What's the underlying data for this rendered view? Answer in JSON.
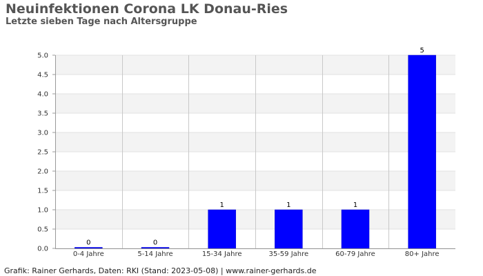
{
  "title": "Neuinfektionen Corona LK Donau-Ries",
  "subtitle": "Letzte sieben Tage nach Altersgruppe",
  "footer": "Grafik: Rainer Gerhards, Daten: RKI (Stand: 2023-05-08) | www.rainer-gerhards.de",
  "colors": {
    "bar": "#0000ff",
    "band": "#f3f3f3",
    "grid": "#c8c8c8",
    "axis": "#999999"
  },
  "chart_data": {
    "type": "bar",
    "categories": [
      "0-4 Jahre",
      "5-14 Jahre",
      "15-34 Jahre",
      "35-59 Jahre",
      "60-79 Jahre",
      "80+ Jahre"
    ],
    "values": [
      0,
      0,
      1,
      1,
      1,
      5
    ],
    "data_labels": [
      "0",
      "0",
      "1",
      "1",
      "1",
      "5"
    ],
    "ylim": [
      0,
      5
    ],
    "yticks": [
      "0.0",
      "0.5",
      "1.0",
      "1.5",
      "2.0",
      "2.5",
      "3.0",
      "3.5",
      "4.0",
      "4.5",
      "5.0"
    ],
    "ytick_values": [
      0,
      0.5,
      1,
      1.5,
      2,
      2.5,
      3,
      3.5,
      4,
      4.5,
      5
    ],
    "grid": true,
    "legend": "none"
  }
}
